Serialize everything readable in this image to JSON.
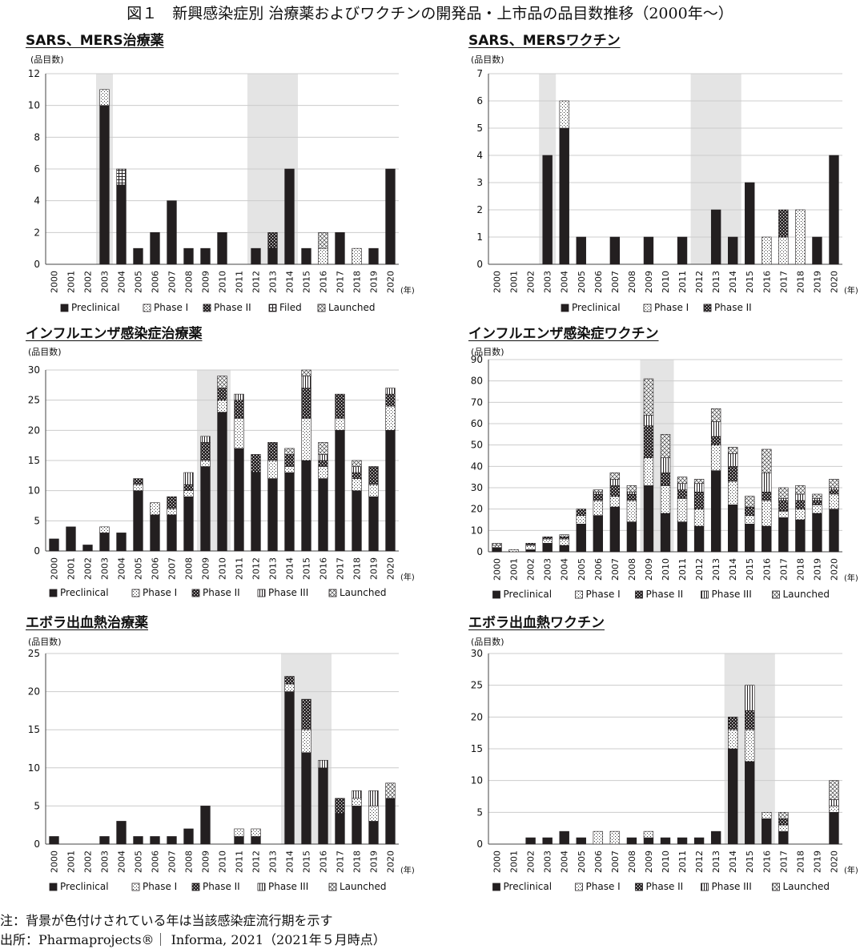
{
  "figure_title": "図１　新興感染症別 治療薬およびワクチンの開発品・上市品の品目数推移（2000年〜）",
  "unit_label": "(品目数)",
  "year_unit": "(年)",
  "colors": {
    "grid": "#cccccc",
    "shade": "#e4e4e4",
    "bar_dark": "#231f20"
  },
  "series_styles": {
    "Preclinical": "solid",
    "Phase I": "dots",
    "Phase II": "dense-dots",
    "Phase III": "vlines",
    "Filed": "grid",
    "Launched": "cross"
  },
  "notes": {
    "note": "注：背景が色付けされている年は当該感染症流行期を示す",
    "source": "出所：Pharmaprojects®｜ Informa, 2021（2021年５月時点）"
  },
  "chart_data": [
    {
      "id": "sars-mers-drug",
      "type": "bar",
      "stacked": true,
      "title": "SARS、MERS治療薬",
      "ylabel": "(品目数)",
      "xlabel": "(年)",
      "categories": [
        "2000",
        "2001",
        "2002",
        "2003",
        "2004",
        "2005",
        "2006",
        "2007",
        "2008",
        "2009",
        "2010",
        "2011",
        "2012",
        "2013",
        "2014",
        "2015",
        "2016",
        "2017",
        "2018",
        "2019",
        "2020"
      ],
      "ylim": [
        0,
        12
      ],
      "yticks": [
        0,
        2,
        4,
        6,
        8,
        10,
        12
      ],
      "shaded": [
        [
          "2003",
          "2003"
        ],
        [
          "2012",
          "2014"
        ]
      ],
      "legend": [
        "Preclinical",
        "Phase I",
        "Phase II",
        "Filed",
        "Launched"
      ],
      "series": [
        {
          "name": "Preclinical",
          "values": [
            0,
            0,
            0,
            10,
            5,
            1,
            2,
            4,
            1,
            1,
            2,
            0,
            1,
            1,
            6,
            1,
            0,
            2,
            0,
            1,
            6
          ]
        },
        {
          "name": "Phase I",
          "values": [
            0,
            0,
            0,
            1,
            0,
            0,
            0,
            0,
            0,
            0,
            0,
            0,
            0,
            0,
            0,
            0,
            1,
            0,
            1,
            0,
            0
          ]
        },
        {
          "name": "Phase II",
          "values": [
            0,
            0,
            0,
            0,
            0,
            0,
            0,
            0,
            0,
            0,
            0,
            0,
            0,
            1,
            0,
            0,
            0,
            0,
            0,
            0,
            0
          ]
        },
        {
          "name": "Filed",
          "values": [
            0,
            0,
            0,
            0,
            1,
            0,
            0,
            0,
            0,
            0,
            0,
            0,
            0,
            0,
            0,
            0,
            0,
            0,
            0,
            0,
            0
          ]
        },
        {
          "name": "Launched",
          "values": [
            0,
            0,
            0,
            0,
            0,
            0,
            0,
            0,
            0,
            0,
            0,
            0,
            0,
            0,
            0,
            0,
            1,
            0,
            0,
            0,
            0
          ]
        }
      ]
    },
    {
      "id": "sars-mers-vaccine",
      "type": "bar",
      "stacked": true,
      "title": "SARS、MERSワクチン",
      "ylabel": "(品目数)",
      "xlabel": "(年)",
      "categories": [
        "2000",
        "2001",
        "2002",
        "2003",
        "2004",
        "2005",
        "2006",
        "2007",
        "2008",
        "2009",
        "2010",
        "2011",
        "2012",
        "2013",
        "2014",
        "2015",
        "2016",
        "2017",
        "2018",
        "2019",
        "2020"
      ],
      "ylim": [
        0,
        7
      ],
      "yticks": [
        0,
        1,
        2,
        3,
        4,
        5,
        6,
        7
      ],
      "shaded": [
        [
          "2003",
          "2003"
        ],
        [
          "2012",
          "2014"
        ]
      ],
      "legend": [
        "Preclinical",
        "Phase I",
        "Phase II"
      ],
      "series": [
        {
          "name": "Preclinical",
          "values": [
            0,
            0,
            0,
            4,
            5,
            1,
            0,
            1,
            0,
            1,
            0,
            1,
            0,
            2,
            1,
            3,
            0,
            0,
            0,
            1,
            4
          ]
        },
        {
          "name": "Phase I",
          "values": [
            0,
            0,
            0,
            0,
            1,
            0,
            0,
            0,
            0,
            0,
            0,
            0,
            0,
            0,
            0,
            0,
            1,
            1,
            2,
            0,
            0
          ]
        },
        {
          "name": "Phase II",
          "values": [
            0,
            0,
            0,
            0,
            0,
            0,
            0,
            0,
            0,
            0,
            0,
            0,
            0,
            0,
            0,
            0,
            0,
            1,
            0,
            0,
            0
          ]
        }
      ]
    },
    {
      "id": "influenza-drug",
      "type": "bar",
      "stacked": true,
      "title": "インフルエンザ感染症治療薬",
      "ylabel": "(品目数)",
      "xlabel": "(年)",
      "categories": [
        "2000",
        "2001",
        "2002",
        "2003",
        "2004",
        "2005",
        "2006",
        "2007",
        "2008",
        "2009",
        "2010",
        "2011",
        "2012",
        "2013",
        "2014",
        "2015",
        "2016",
        "2017",
        "2018",
        "2019",
        "2020"
      ],
      "ylim": [
        0,
        30
      ],
      "yticks": [
        0,
        5,
        10,
        15,
        20,
        25,
        30
      ],
      "shaded": [
        [
          "2009",
          "2010"
        ]
      ],
      "legend": [
        "Preclinical",
        "Phase I",
        "Phase II",
        "Phase III",
        "Launched"
      ],
      "series": [
        {
          "name": "Preclinical",
          "values": [
            2,
            4,
            1,
            3,
            3,
            10,
            6,
            6,
            9,
            14,
            23,
            17,
            13,
            12,
            13,
            15,
            12,
            20,
            10,
            9,
            20
          ]
        },
        {
          "name": "Phase I",
          "values": [
            0,
            0,
            0,
            1,
            0,
            1,
            2,
            1,
            1,
            1,
            2,
            5,
            0,
            3,
            1,
            7,
            2,
            2,
            2,
            2,
            4
          ]
        },
        {
          "name": "Phase II",
          "values": [
            0,
            0,
            0,
            0,
            0,
            1,
            0,
            2,
            1,
            3,
            2,
            3,
            3,
            3,
            2,
            5,
            1,
            4,
            1,
            3,
            2
          ]
        },
        {
          "name": "Phase III",
          "values": [
            0,
            0,
            0,
            0,
            0,
            0,
            0,
            0,
            2,
            1,
            0,
            1,
            0,
            0,
            0,
            2,
            1,
            0,
            1,
            0,
            1
          ]
        },
        {
          "name": "Launched",
          "values": [
            0,
            0,
            0,
            0,
            0,
            0,
            0,
            0,
            0,
            0,
            2,
            0,
            0,
            0,
            1,
            1,
            2,
            0,
            1,
            0,
            0
          ]
        }
      ]
    },
    {
      "id": "influenza-vaccine",
      "type": "bar",
      "stacked": true,
      "title": "インフルエンザ感染症ワクチン",
      "ylabel": "(品目数)",
      "xlabel": "(年)",
      "categories": [
        "2000",
        "2001",
        "2002",
        "2003",
        "2004",
        "2005",
        "2006",
        "2007",
        "2008",
        "2009",
        "2010",
        "2011",
        "2012",
        "2013",
        "2014",
        "2015",
        "2016",
        "2017",
        "2018",
        "2019",
        "2020"
      ],
      "ylim": [
        0,
        90
      ],
      "yticks": [
        0,
        10,
        20,
        30,
        40,
        50,
        60,
        70,
        80,
        90
      ],
      "shaded": [
        [
          "2009",
          "2010"
        ]
      ],
      "legend": [
        "Preclinical",
        "Phase I",
        "Phase II",
        "Phase III",
        "Launched"
      ],
      "series": [
        {
          "name": "Preclinical",
          "values": [
            2,
            0,
            1,
            4,
            3,
            13,
            17,
            21,
            14,
            31,
            18,
            14,
            12,
            38,
            22,
            13,
            12,
            16,
            15,
            18,
            20
          ]
        },
        {
          "name": "Phase I",
          "values": [
            1,
            1,
            2,
            2,
            3,
            4,
            7,
            5,
            10,
            13,
            13,
            11,
            8,
            12,
            11,
            4,
            12,
            3,
            5,
            4,
            7
          ]
        },
        {
          "name": "Phase II",
          "values": [
            0,
            0,
            1,
            1,
            1,
            3,
            3,
            5,
            3,
            15,
            6,
            4,
            8,
            4,
            7,
            4,
            4,
            5,
            4,
            2,
            2
          ]
        },
        {
          "name": "Phase III",
          "values": [
            0,
            0,
            0,
            0,
            0,
            0,
            1,
            3,
            1,
            5,
            7,
            3,
            4,
            7,
            6,
            0,
            9,
            1,
            3,
            1,
            1
          ]
        },
        {
          "name": "Launched",
          "values": [
            1,
            0,
            0,
            0,
            1,
            0,
            1,
            3,
            3,
            17,
            11,
            3,
            2,
            6,
            3,
            5,
            11,
            5,
            4,
            2,
            4
          ]
        }
      ]
    },
    {
      "id": "ebola-drug",
      "type": "bar",
      "stacked": true,
      "title": "エボラ出血熱治療薬",
      "ylabel": "(品目数)",
      "xlabel": "(年)",
      "categories": [
        "2000",
        "2001",
        "2002",
        "2003",
        "2004",
        "2005",
        "2006",
        "2007",
        "2008",
        "2009",
        "2010",
        "2011",
        "2012",
        "2013",
        "2014",
        "2015",
        "2016",
        "2017",
        "2018",
        "2019",
        "2020"
      ],
      "ylim": [
        0,
        25
      ],
      "yticks": [
        0,
        5,
        10,
        15,
        20,
        25
      ],
      "shaded": [
        [
          "2014",
          "2016"
        ]
      ],
      "legend": [
        "Preclinical",
        "Phase I",
        "Phase II",
        "Phase III",
        "Launched"
      ],
      "series": [
        {
          "name": "Preclinical",
          "values": [
            1,
            0,
            0,
            1,
            3,
            1,
            1,
            1,
            2,
            5,
            0,
            1,
            1,
            0,
            20,
            12,
            10,
            4,
            5,
            3,
            6
          ]
        },
        {
          "name": "Phase I",
          "values": [
            0,
            0,
            0,
            0,
            0,
            0,
            0,
            0,
            0,
            0,
            0,
            1,
            1,
            0,
            1,
            3,
            0,
            0,
            1,
            2,
            0
          ]
        },
        {
          "name": "Phase II",
          "values": [
            0,
            0,
            0,
            0,
            0,
            0,
            0,
            0,
            0,
            0,
            0,
            0,
            0,
            0,
            1,
            4,
            0,
            2,
            0,
            0,
            0
          ]
        },
        {
          "name": "Phase III",
          "values": [
            0,
            0,
            0,
            0,
            0,
            0,
            0,
            0,
            0,
            0,
            0,
            0,
            0,
            0,
            0,
            0,
            1,
            0,
            1,
            2,
            0
          ]
        },
        {
          "name": "Launched",
          "values": [
            0,
            0,
            0,
            0,
            0,
            0,
            0,
            0,
            0,
            0,
            0,
            0,
            0,
            0,
            0,
            0,
            0,
            0,
            0,
            0,
            2
          ]
        }
      ]
    },
    {
      "id": "ebola-vaccine",
      "type": "bar",
      "stacked": true,
      "title": "エボラ出血熱ワクチン",
      "ylabel": "(品目数)",
      "xlabel": "(年)",
      "categories": [
        "2000",
        "2001",
        "2002",
        "2003",
        "2004",
        "2005",
        "2006",
        "2007",
        "2008",
        "2009",
        "2010",
        "2011",
        "2012",
        "2013",
        "2014",
        "2015",
        "2016",
        "2017",
        "2018",
        "2019",
        "2020"
      ],
      "ylim": [
        0,
        30
      ],
      "yticks": [
        0,
        5,
        10,
        15,
        20,
        25,
        30
      ],
      "shaded": [
        [
          "2014",
          "2016"
        ]
      ],
      "legend": [
        "Preclinical",
        "Phase I",
        "Phase II",
        "Phase III",
        "Launched"
      ],
      "series": [
        {
          "name": "Preclinical",
          "values": [
            0,
            0,
            1,
            1,
            2,
            1,
            0,
            0,
            1,
            1,
            1,
            1,
            1,
            2,
            15,
            13,
            4,
            2,
            0,
            0,
            5
          ]
        },
        {
          "name": "Phase I",
          "values": [
            0,
            0,
            0,
            0,
            0,
            0,
            2,
            2,
            0,
            1,
            0,
            0,
            0,
            0,
            3,
            5,
            1,
            1,
            0,
            0,
            1
          ]
        },
        {
          "name": "Phase II",
          "values": [
            0,
            0,
            0,
            0,
            0,
            0,
            0,
            0,
            0,
            0,
            0,
            0,
            0,
            0,
            2,
            3,
            0,
            1,
            0,
            0,
            0
          ]
        },
        {
          "name": "Phase III",
          "values": [
            0,
            0,
            0,
            0,
            0,
            0,
            0,
            0,
            0,
            0,
            0,
            0,
            0,
            0,
            0,
            4,
            0,
            0,
            0,
            0,
            1
          ]
        },
        {
          "name": "Launched",
          "values": [
            0,
            0,
            0,
            0,
            0,
            0,
            0,
            0,
            0,
            0,
            0,
            0,
            0,
            0,
            0,
            0,
            0,
            1,
            0,
            0,
            3
          ]
        }
      ]
    }
  ]
}
